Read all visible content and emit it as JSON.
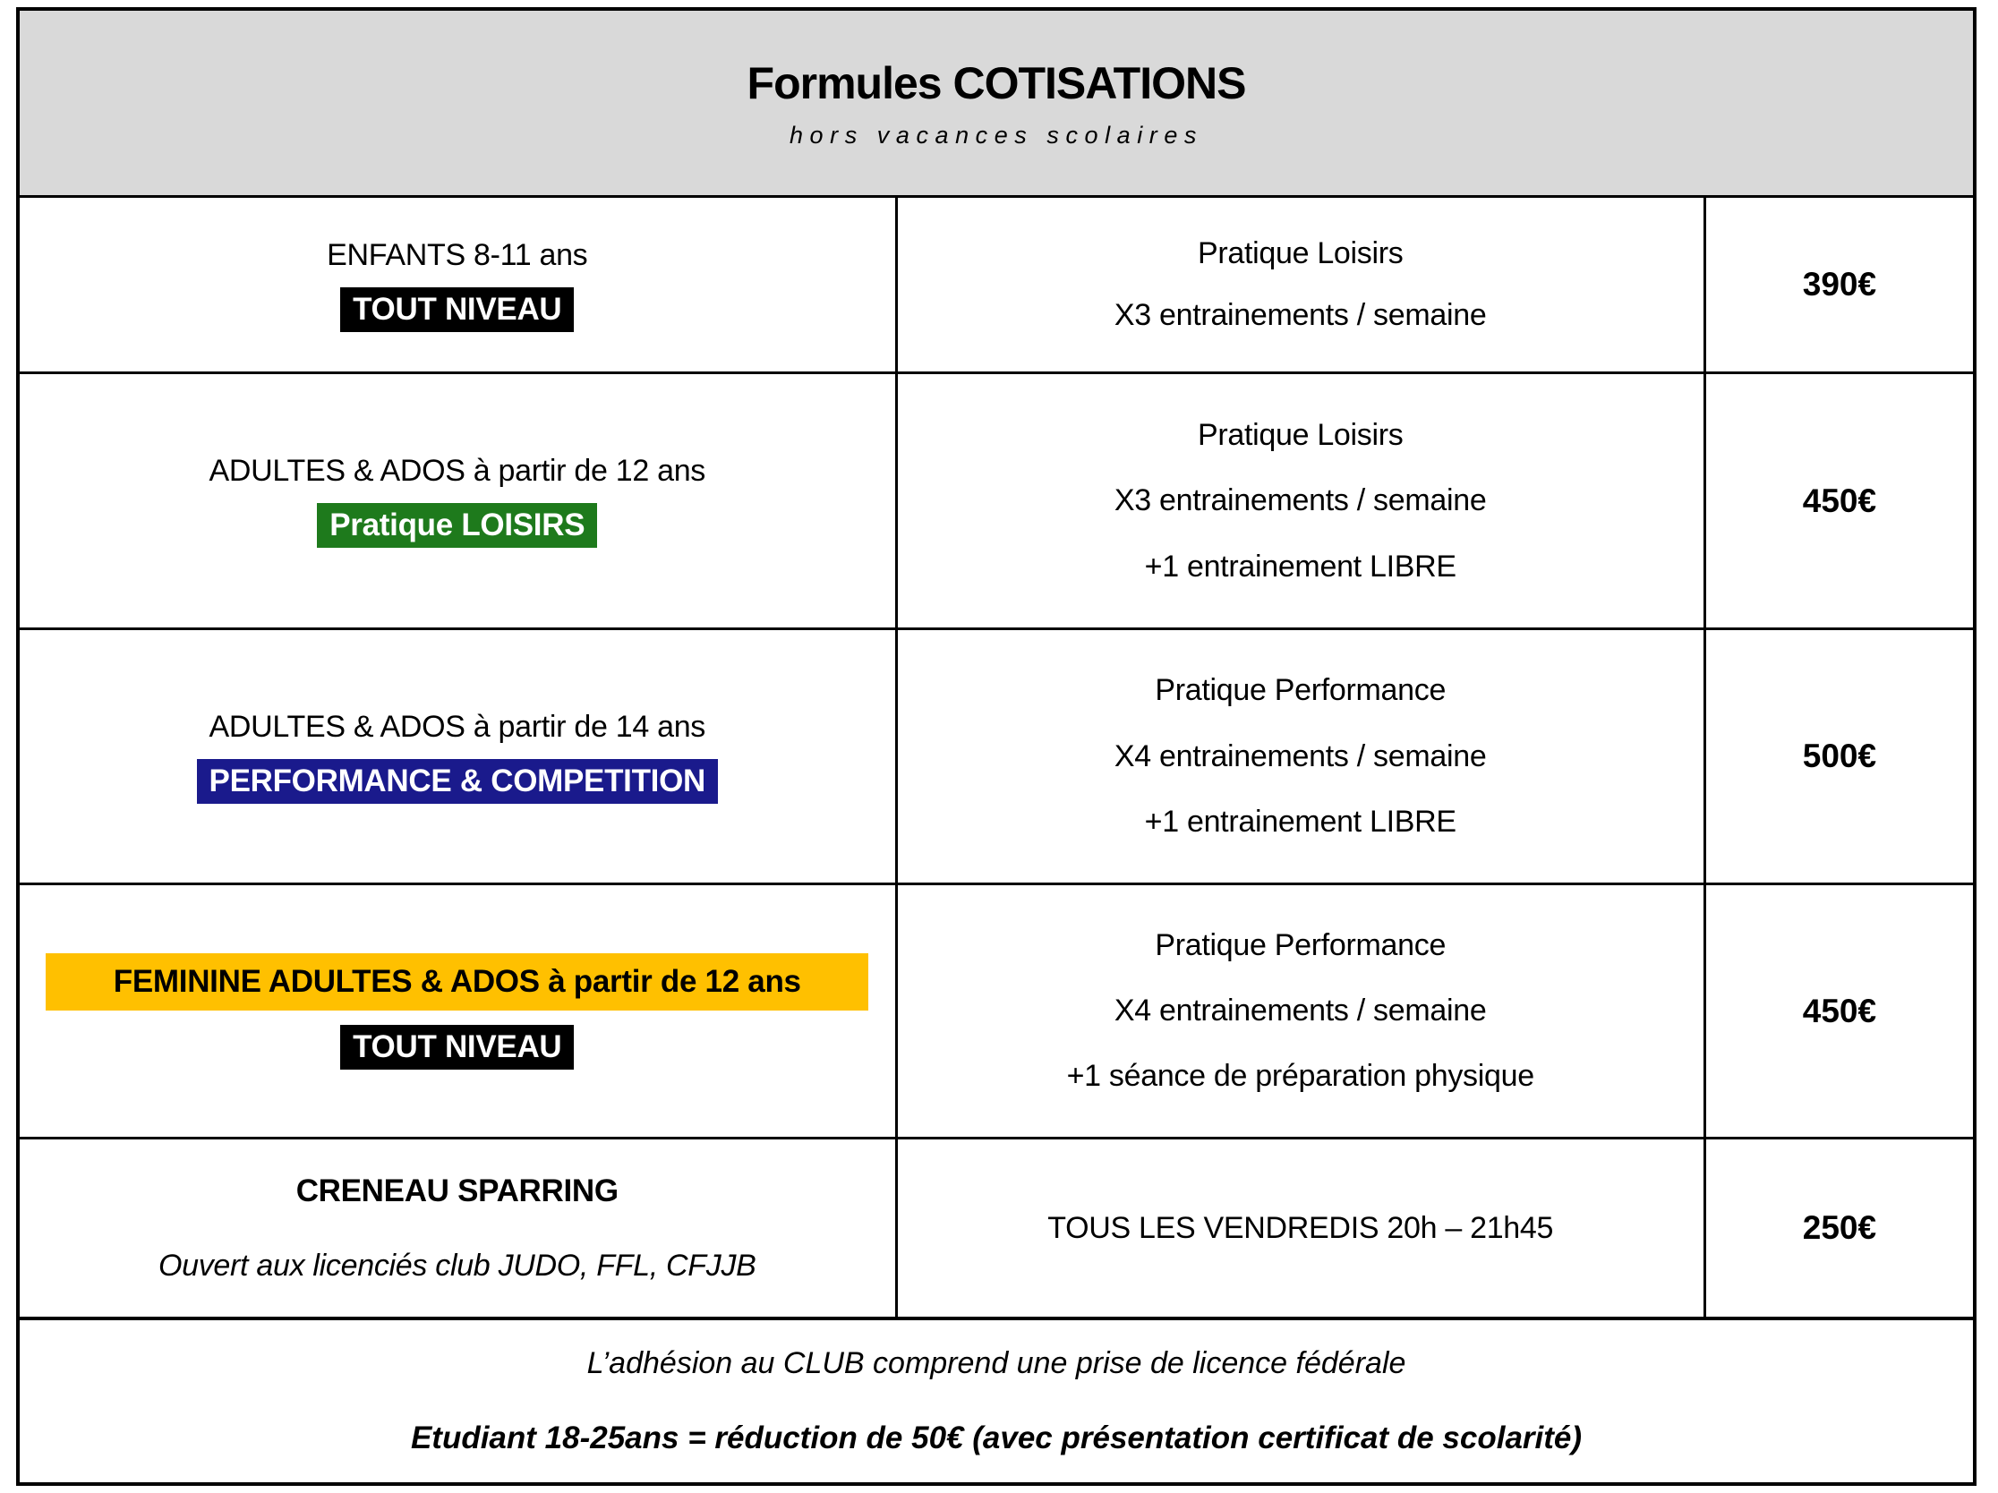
{
  "header": {
    "title": "Formules COTISATIONS",
    "subtitle": "hors vacances scolaires"
  },
  "colors": {
    "header_bg": "#D9D9D9",
    "badge_black": "#000000",
    "badge_green": "#1E7A1C",
    "badge_blue": "#1A1A8C",
    "highlight_yellow": "#FFC000"
  },
  "rows": [
    {
      "category": "ENFANTS 8-11 ans",
      "badge": "TOUT NIVEAU",
      "badge_color": "black",
      "details": [
        "Pratique Loisirs",
        "X3 entrainements / semaine"
      ],
      "price": "390€"
    },
    {
      "category": "ADULTES & ADOS à partir de 12 ans",
      "badge": "Pratique LOISIRS",
      "badge_color": "green",
      "details": [
        "Pratique Loisirs",
        "X3 entrainements / semaine",
        "+1 entrainement LIBRE"
      ],
      "price": "450€"
    },
    {
      "category": "ADULTES & ADOS à partir de 14 ans",
      "badge": "PERFORMANCE & COMPETITION",
      "badge_color": "blue",
      "details": [
        "Pratique Performance",
        "X4 entrainements / semaine",
        "+1 entrainement LIBRE"
      ],
      "price": "500€"
    },
    {
      "category": "FEMININE ADULTES & ADOS à partir de 12 ans",
      "category_highlight": "yellow",
      "badge": "TOUT NIVEAU",
      "badge_color": "black",
      "details": [
        "Pratique Performance",
        "X4 entrainements / semaine",
        "+1 séance de préparation physique"
      ],
      "price": "450€"
    },
    {
      "category": "CRENEAU SPARRING",
      "subcategory": "Ouvert aux licenciés club JUDO, FFL, CFJJB",
      "details": [
        "TOUS LES VENDREDIS 20h – 21h45"
      ],
      "price": "250€"
    }
  ],
  "footer": {
    "line1": "L’adhésion au CLUB comprend une prise de licence fédérale",
    "line2": "Etudiant 18-25ans = réduction de 50€ (avec présentation certificat de scolarité)"
  }
}
